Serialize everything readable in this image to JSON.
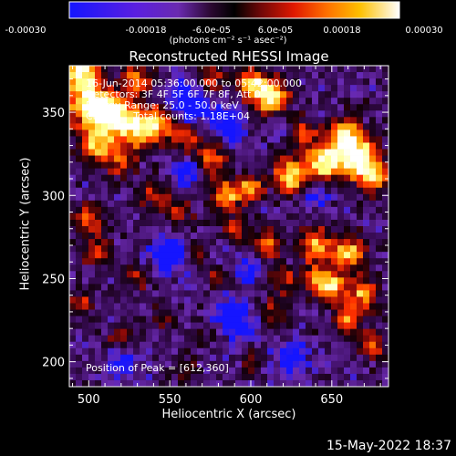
{
  "colorbar": {
    "tick_labels": [
      "-0.00030",
      "-0.00018",
      "-6.0e-05",
      "6.0e-05",
      "0.00018",
      "0.00030"
    ],
    "unit_label": "(photons cm⁻² s⁻¹ asec⁻²)",
    "range": [
      -0.0003,
      0.0003
    ]
  },
  "chart_data": {
    "type": "heatmap",
    "title": "Reconstructed RHESSI Image",
    "xlabel": "Heliocentric X (arcsec)",
    "ylabel": "Heliocentric Y (arcsec)",
    "xlim": [
      488,
      685
    ],
    "ylim": [
      185,
      378
    ],
    "x_ticks": [
      500,
      550,
      600,
      650
    ],
    "y_ticks": [
      200,
      250,
      300,
      350
    ],
    "colormap": "blue-purple-black-red-orange-yellow-white",
    "colormap_stops": [
      "#1515ff",
      "#6a2ab0",
      "#3a0c5a",
      "#120008",
      "#8e0a08",
      "#ff3000",
      "#ffa000",
      "#ffff80",
      "#ffffff"
    ],
    "annotations": [
      "16-Jun-2014 05:36:00.000 to 05:42:00.000",
      "Detectors: 3F 4F 5F 6F 7F 8F, Att 0",
      "Energy Range: 25.0 - 50.0 keV",
      "Clean      Total counts: 1.18E+04",
      "Position of Peak = [612,360]"
    ],
    "peak_position": [
      612,
      360
    ]
  },
  "footer": {
    "timestamp": "15-May-2022 18:37"
  }
}
